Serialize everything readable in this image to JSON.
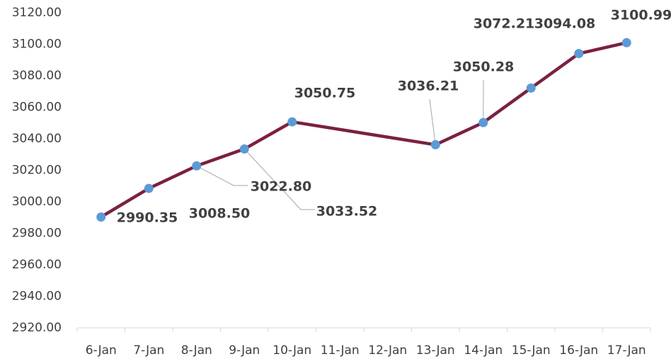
{
  "chart_data": {
    "type": "line",
    "categories": [
      "6-Jan",
      "7-Jan",
      "8-Jan",
      "9-Jan",
      "10-Jan",
      "11-Jan",
      "12-Jan",
      "13-Jan",
      "14-Jan",
      "15-Jan",
      "16-Jan",
      "17-Jan"
    ],
    "x": [
      "6-Jan",
      "7-Jan",
      "8-Jan",
      "9-Jan",
      "10-Jan",
      "13-Jan",
      "14-Jan",
      "15-Jan",
      "16-Jan",
      "17-Jan"
    ],
    "values": [
      2990.35,
      3008.5,
      3022.8,
      3033.52,
      3050.75,
      3036.21,
      3050.28,
      3072.21,
      3094.08,
      3100.99
    ],
    "value_labels": [
      "2990.35",
      "3008.50",
      "3022.80",
      "3033.52",
      "3050.75",
      "3036.21",
      "3050.28",
      "3072.21",
      "3094.08",
      "3100.99"
    ],
    "color": "#7b2042",
    "marker_color": "#5b9bd5",
    "ylim": [
      2920,
      3120
    ],
    "yticks": [
      {
        "value": 2920,
        "label": "2920.00"
      },
      {
        "value": 2940,
        "label": "2940.00"
      },
      {
        "value": 2960,
        "label": "2960.00"
      },
      {
        "value": 2980,
        "label": "2980.00"
      },
      {
        "value": 3000,
        "label": "3000.00"
      },
      {
        "value": 3020,
        "label": "3020.00"
      },
      {
        "value": 3040,
        "label": "3040.00"
      },
      {
        "value": 3060,
        "label": "3060.00"
      },
      {
        "value": 3080,
        "label": "3080.00"
      },
      {
        "value": 3100,
        "label": "3100.00"
      },
      {
        "value": 3120,
        "label": "3120.00"
      }
    ]
  }
}
